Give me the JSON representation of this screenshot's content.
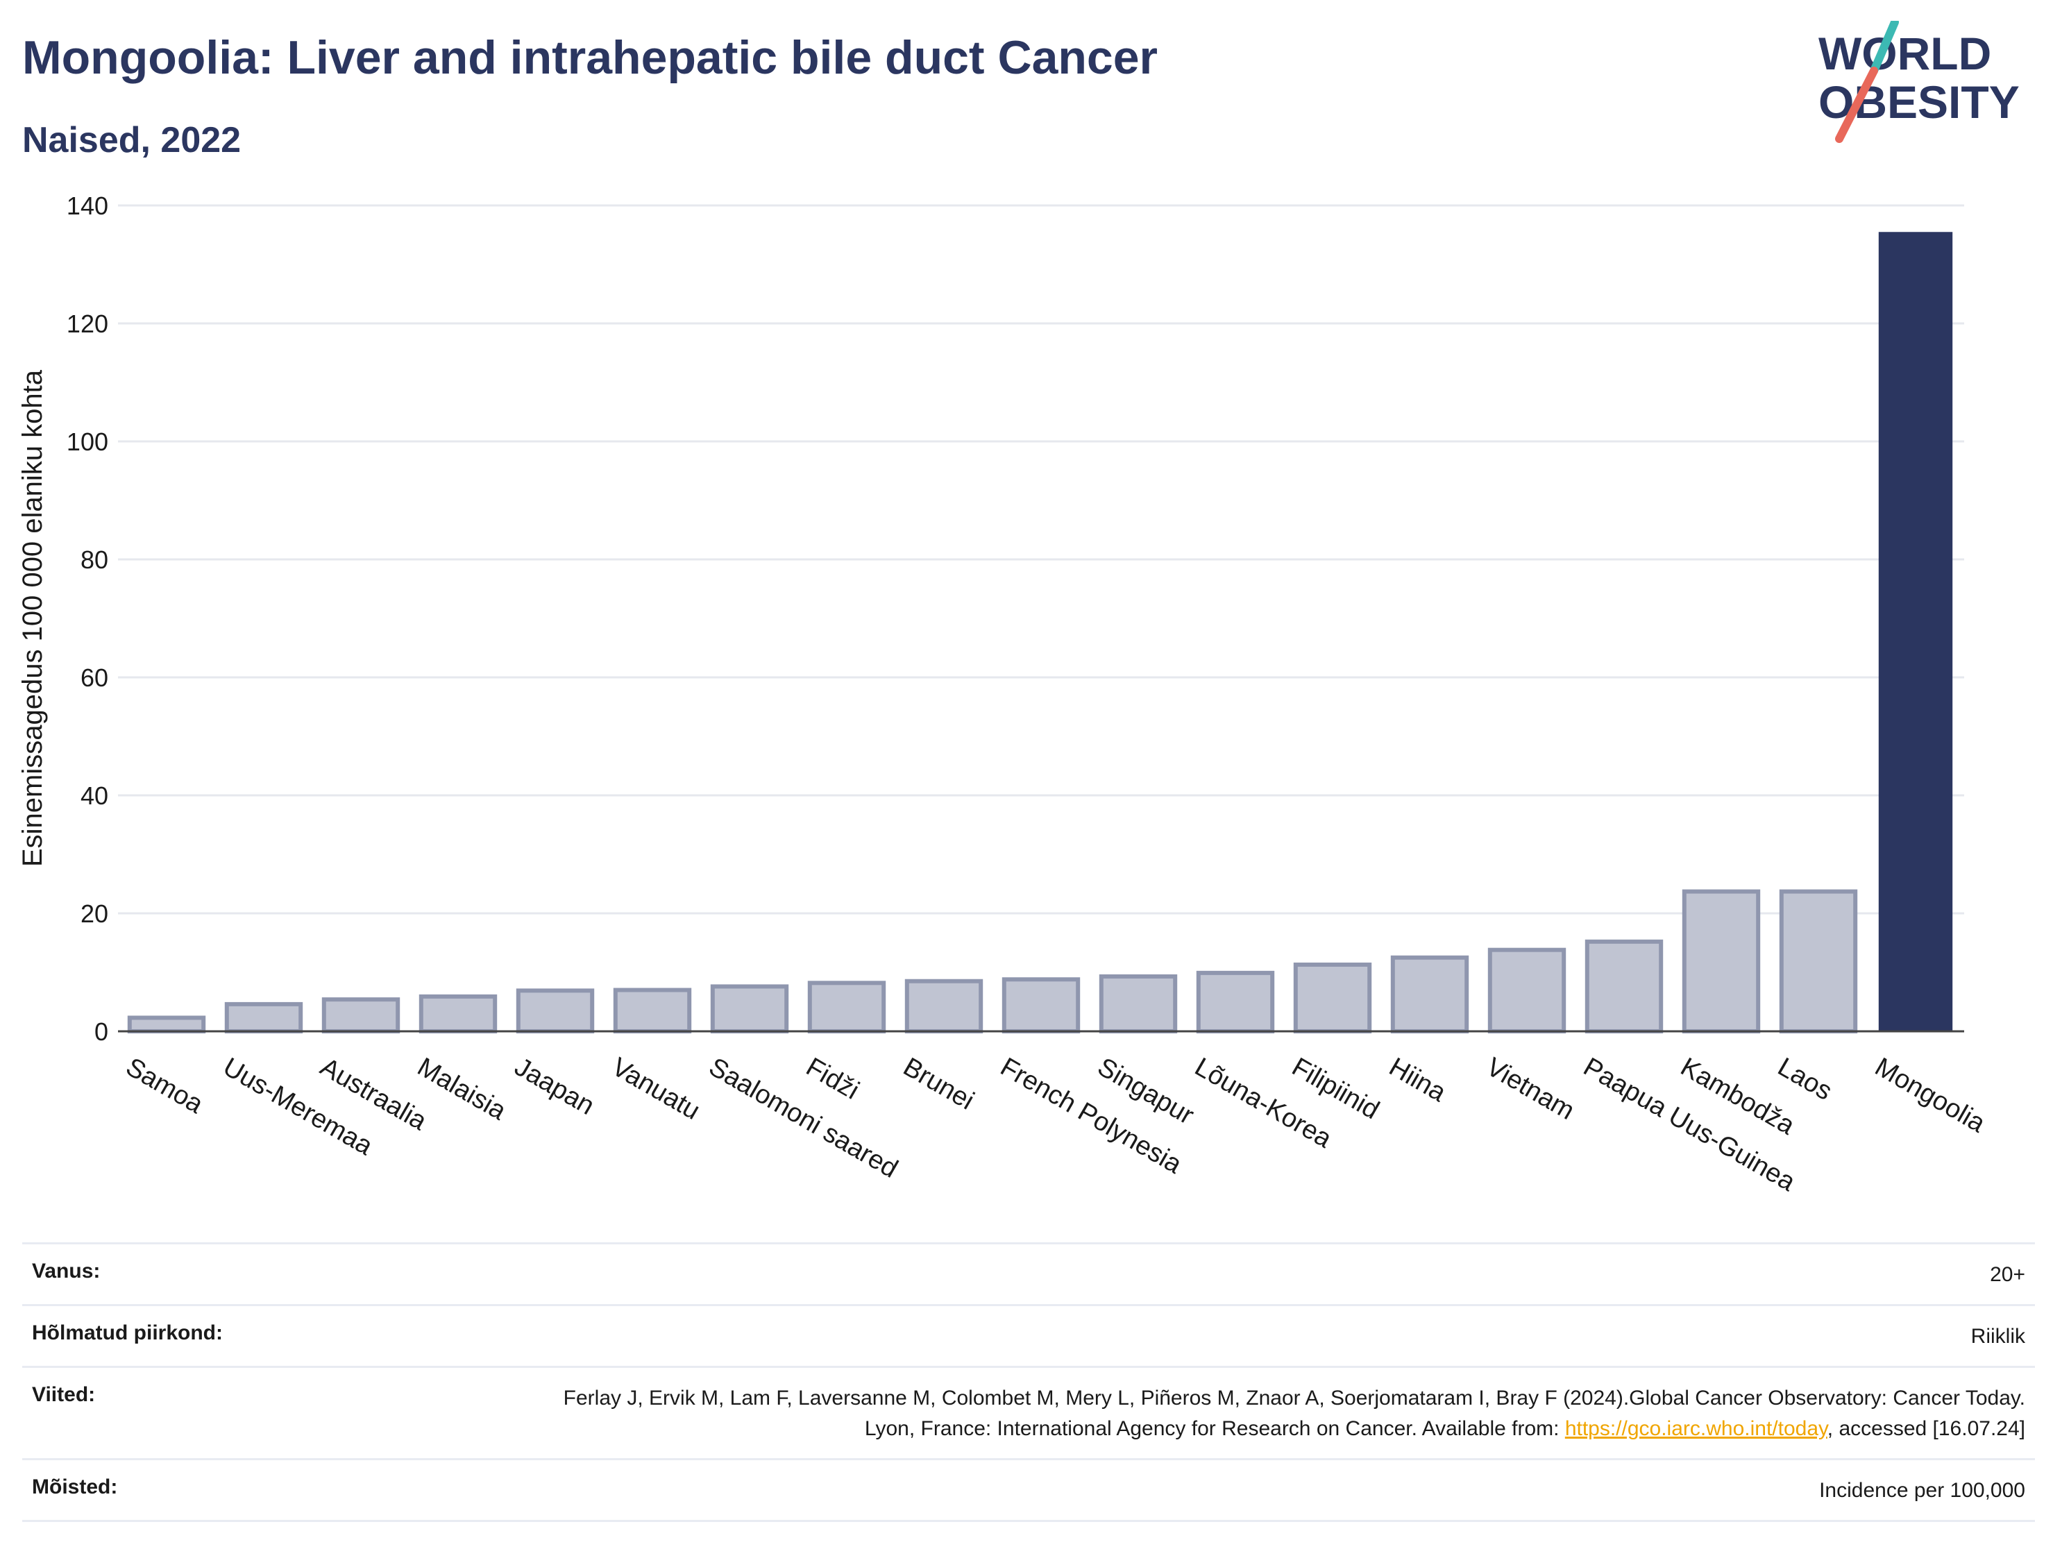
{
  "header": {
    "title": "Mongoolia: Liver and intrahepatic bile duct Cancer",
    "subtitle": "Naised, 2022"
  },
  "logo": {
    "line1": "WORLD",
    "line2": "OBESITY"
  },
  "colors": {
    "highlight": "#2b3660",
    "other": "#c0c4d2",
    "other_border": "#8f96ae",
    "logo_teal": "#3cb9b3",
    "logo_red": "#e8685a"
  },
  "chart_data": {
    "type": "bar",
    "ylabel": "Esinemissagedus 100 000 elaniku kohta",
    "ylim": [
      0,
      140
    ],
    "yticks": [
      0,
      20,
      40,
      60,
      80,
      100,
      120,
      140
    ],
    "grid": true,
    "categories": [
      "Samoa",
      "Uus-Meremaa",
      "Austraalia",
      "Malaisia",
      "Jaapan",
      "Vanuatu",
      "Saalomoni saared",
      "Fidži",
      "Brunei",
      "French Polynesia",
      "Singapur",
      "Lõuna-Korea",
      "Filipiinid",
      "Hiina",
      "Vietnam",
      "Paapua Uus-Guinea",
      "Kambodža",
      "Laos",
      "Mongoolia"
    ],
    "values": [
      2.3,
      4.6,
      5.4,
      5.9,
      6.9,
      7.0,
      7.6,
      8.2,
      8.5,
      8.8,
      9.3,
      9.9,
      11.3,
      12.5,
      13.8,
      15.2,
      23.7,
      23.7,
      135.5
    ],
    "highlight": "Mongoolia"
  },
  "info": {
    "age_label": "Vanus:",
    "age_value": "20+",
    "region_label": "Hõlmatud piirkond:",
    "region_value": "Riiklik",
    "refs_label": "Viited:",
    "refs_text1": "Ferlay J, Ervik M, Lam F, Laversanne M, Colombet M, Mery L, Piñeros M, Znaor A, Soerjomataram I, Bray F (2024).Global Cancer Observatory: Cancer Today. Lyon, France: International Agency for Research on Cancer. Available from: ",
    "refs_link": "https://gco.iarc.who.int/today",
    "refs_text2": ", accessed [16.07.24]",
    "defs_label": "Mõisted:",
    "defs_value": "Incidence per 100,000"
  }
}
